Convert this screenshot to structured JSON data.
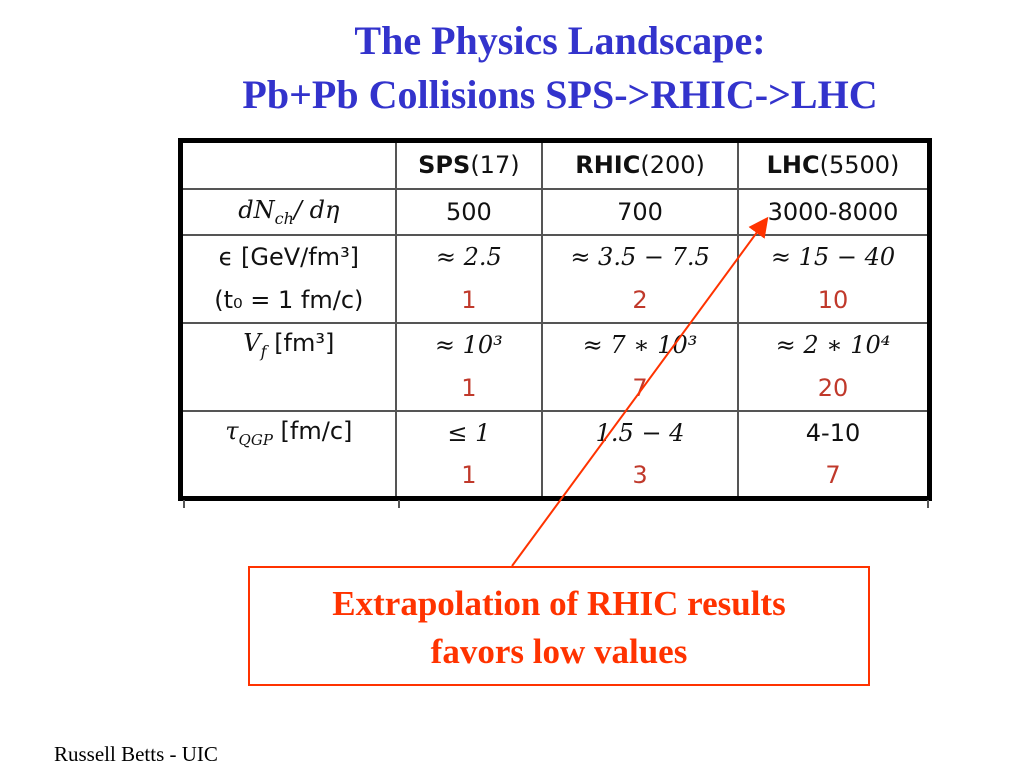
{
  "title": {
    "line1": "The Physics Landscape:",
    "line2": "Pb+Pb Collisions SPS->RHIC->LHC"
  },
  "table": {
    "headers": {
      "sps_name": "SPS",
      "sps_energy": "(17)",
      "rhic_name": "RHIC",
      "rhic_energy": "(200)",
      "lhc_name": "LHC",
      "lhc_energy": "(5500)"
    },
    "rows": {
      "multiplicity": {
        "label": "dN",
        "label_sub": "ch",
        "label_tail": "/ dη",
        "sps": "500",
        "rhic": "700",
        "lhc": "3000-8000"
      },
      "energy_density": {
        "label": "ϵ [GeV/fm³]",
        "sps": "≈ 2.5",
        "rhic": "≈ 3.5 − 7.5",
        "lhc": "≈ 15 − 40"
      },
      "energy_density_ratio": {
        "label": "(t₀ = 1 fm/c)",
        "sps": "1",
        "rhic": "2",
        "lhc": "10"
      },
      "volume": {
        "label": "V",
        "label_sub": "f",
        "label_tail": " [fm³]",
        "sps": "≈ 10³",
        "rhic": "≈ 7 ∗ 10³",
        "lhc": "≈ 2 ∗ 10⁴"
      },
      "volume_ratio": {
        "sps": "1",
        "rhic": "7",
        "lhc": "20"
      },
      "lifetime": {
        "label": "τ",
        "label_sub": "QGP",
        "label_tail": " [fm/c]",
        "sps": "≤ 1",
        "rhic": "1.5 − 4",
        "lhc": "4-10"
      },
      "lifetime_ratio": {
        "sps": "1",
        "rhic": "3",
        "lhc": "7"
      }
    }
  },
  "callout": {
    "line1": "Extrapolation of RHIC results",
    "line2": "favors low values"
  },
  "footer": "Russell Betts - UIC",
  "colors": {
    "title": "#3333cc",
    "callout": "#ff3300",
    "ratio_values": "#c0392b"
  }
}
